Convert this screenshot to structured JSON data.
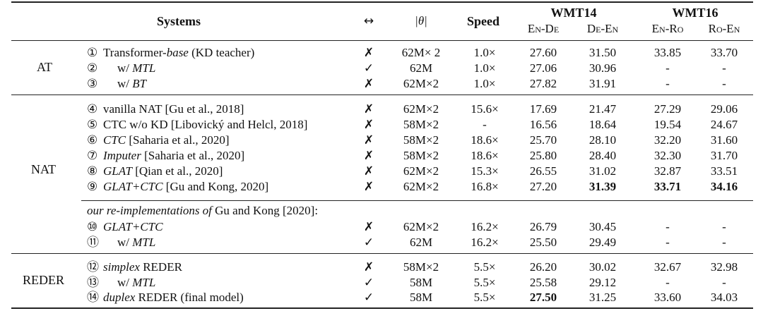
{
  "header": {
    "systems": "Systems",
    "arrow": "↔",
    "params": "|θ|",
    "speed": "Speed",
    "wmt14": "WMT14",
    "wmt16": "WMT16",
    "cols": [
      "En-De",
      "De-En",
      "En-Ro",
      "Ro-En"
    ]
  },
  "groups": [
    "AT",
    "NAT",
    "REDER"
  ],
  "rows": [
    {
      "num": "①",
      "pre": "Transformer-",
      "em": "base",
      "post": " (KD teacher)",
      "indent": false,
      "flag": "✗",
      "params": "62M× 2",
      "speed": "1.0×",
      "v": [
        "27.60",
        "31.50",
        "33.85",
        "33.70"
      ],
      "bold": [
        false,
        false,
        false,
        false
      ]
    },
    {
      "num": "②",
      "pre": "w/ ",
      "em": "MTL",
      "post": "",
      "indent": true,
      "flag": "✓",
      "params": "62M",
      "speed": "1.0×",
      "v": [
        "27.06",
        "30.96",
        "-",
        "-"
      ],
      "bold": [
        false,
        false,
        false,
        false
      ]
    },
    {
      "num": "③",
      "pre": "w/ ",
      "em": "BT",
      "post": "",
      "indent": true,
      "flag": "✗",
      "params": "62M×2",
      "speed": "1.0×",
      "v": [
        "27.82",
        "31.91",
        "-",
        "-"
      ],
      "bold": [
        false,
        false,
        false,
        false
      ]
    },
    {
      "num": "④",
      "pre": "vanilla NAT [Gu et al., 2018]",
      "em": "",
      "post": "",
      "indent": false,
      "flag": "✗",
      "params": "62M×2",
      "speed": "15.6×",
      "v": [
        "17.69",
        "21.47",
        "27.29",
        "29.06"
      ],
      "bold": [
        false,
        false,
        false,
        false
      ]
    },
    {
      "num": "⑤",
      "pre": "CTC w/o KD [Libovický and Helcl, 2018]",
      "em": "",
      "post": "",
      "indent": false,
      "flag": "✗",
      "params": "58M×2",
      "speed": "-",
      "v": [
        "16.56",
        "18.64",
        "19.54",
        "24.67"
      ],
      "bold": [
        false,
        false,
        false,
        false
      ]
    },
    {
      "num": "⑥",
      "pre": "",
      "em": "CTC",
      "post": " [Saharia et al., 2020]",
      "indent": false,
      "flag": "✗",
      "params": "58M×2",
      "speed": "18.6×",
      "v": [
        "25.70",
        "28.10",
        "32.20",
        "31.60"
      ],
      "bold": [
        false,
        false,
        false,
        false
      ]
    },
    {
      "num": "⑦",
      "pre": "",
      "em": "Imputer",
      "post": " [Saharia et al., 2020]",
      "indent": false,
      "flag": "✗",
      "params": "58M×2",
      "speed": "18.6×",
      "v": [
        "25.80",
        "28.40",
        "32.30",
        "31.70"
      ],
      "bold": [
        false,
        false,
        false,
        false
      ]
    },
    {
      "num": "⑧",
      "pre": "",
      "em": "GLAT",
      "post": " [Qian et al., 2020]",
      "indent": false,
      "flag": "✗",
      "params": "62M×2",
      "speed": "15.3×",
      "v": [
        "26.55",
        "31.02",
        "32.87",
        "33.51"
      ],
      "bold": [
        false,
        false,
        false,
        false
      ]
    },
    {
      "num": "⑨",
      "pre": "",
      "em": "GLAT+CTC",
      "post": " [Gu and Kong, 2020]",
      "indent": false,
      "flag": "✗",
      "params": "62M×2",
      "speed": "16.8×",
      "v": [
        "27.20",
        "31.39",
        "33.71",
        "34.16"
      ],
      "bold": [
        false,
        true,
        true,
        true
      ]
    },
    {
      "num": "⑩",
      "pre": "",
      "em": "GLAT+CTC",
      "post": "",
      "indent": false,
      "flag": "✗",
      "params": "62M×2",
      "speed": "16.2×",
      "v": [
        "26.79",
        "30.45",
        "-",
        "-"
      ],
      "bold": [
        false,
        false,
        false,
        false
      ]
    },
    {
      "num": "⑪",
      "pre": "w/ ",
      "em": "MTL",
      "post": "",
      "indent": true,
      "flag": "✓",
      "params": "62M",
      "speed": "16.2×",
      "v": [
        "25.50",
        "29.49",
        "-",
        "-"
      ],
      "bold": [
        false,
        false,
        false,
        false
      ]
    },
    {
      "num": "⑫",
      "pre": "",
      "em": "simplex",
      "post": " REDER",
      "indent": false,
      "flag": "✗",
      "params": "58M×2",
      "speed": "5.5×",
      "v": [
        "26.20",
        "30.02",
        "32.67",
        "32.98"
      ],
      "bold": [
        false,
        false,
        false,
        false
      ]
    },
    {
      "num": "⑬",
      "pre": "w/ ",
      "em": "MTL",
      "post": "",
      "indent": true,
      "flag": "✓",
      "params": "58M",
      "speed": "5.5×",
      "v": [
        "25.58",
        "29.12",
        "-",
        "-"
      ],
      "bold": [
        false,
        false,
        false,
        false
      ]
    },
    {
      "num": "⑭",
      "pre": "",
      "em": "duplex",
      "post": " REDER (final model)",
      "indent": false,
      "flag": "✓",
      "params": "58M",
      "speed": "5.5×",
      "v": [
        "27.50",
        "31.25",
        "33.60",
        "34.03"
      ],
      "bold": [
        true,
        false,
        false,
        false
      ]
    }
  ],
  "subheading": {
    "em": "our re-implementations of",
    "post": " Gu and Kong [2020]:"
  }
}
